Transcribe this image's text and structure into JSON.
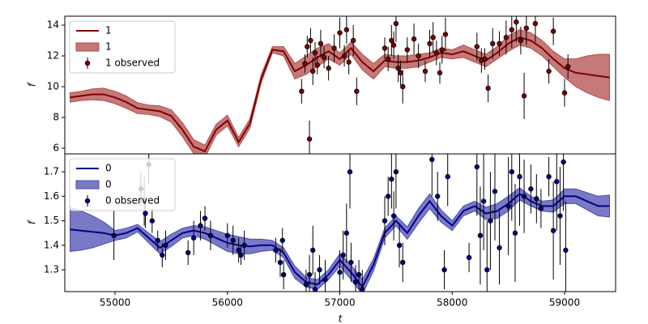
{
  "chart_data": [
    {
      "type": "gp",
      "ylabel": "f",
      "legend": "upper left",
      "xlim": [
        54553,
        59454
      ],
      "ylim": [
        5.63,
        14.58
      ],
      "yticks": [
        6,
        8,
        10,
        12,
        14
      ],
      "x": [
        54600,
        54700,
        54800,
        54900,
        55000,
        55100,
        55200,
        55300,
        55400,
        55500,
        55600,
        55700,
        55800,
        55900,
        56000,
        56100,
        56200,
        56300,
        56400,
        56500,
        56600,
        56700,
        56800,
        56900,
        57000,
        57100,
        57200,
        57300,
        57400,
        57500,
        57600,
        57700,
        57800,
        57900,
        58000,
        58100,
        58200,
        58300,
        58400,
        58500,
        58600,
        58700,
        58800,
        58900,
        59000,
        59100,
        59200,
        59300,
        59400
      ],
      "series": [
        {
          "name": "1",
          "color": "#800000",
          "values": [
            9.3,
            9.4,
            9.5,
            9.5,
            9.3,
            9.0,
            8.6,
            8.5,
            8.4,
            8.1,
            7.2,
            6.1,
            5.8,
            7.2,
            7.8,
            6.4,
            7.6,
            10.5,
            12.4,
            12.3,
            11.0,
            11.4,
            11.9,
            12.3,
            11.8,
            12.5,
            11.6,
            11.0,
            11.7,
            11.6,
            11.6,
            11.7,
            11.9,
            12.2,
            12.1,
            12.3,
            12.0,
            11.7,
            12.2,
            12.8,
            13.2,
            13.0,
            12.5,
            11.8,
            11.2,
            10.9,
            10.8,
            10.7,
            10.6
          ]
        },
        {
          "name": "1",
          "color": "#b24c4c",
          "band": [
            0.3,
            0.3,
            0.35,
            0.4,
            0.4,
            0.4,
            0.35,
            0.3,
            0.35,
            0.4,
            0.45,
            0.45,
            0.4,
            0.35,
            0.35,
            0.3,
            0.3,
            0.25,
            0.2,
            0.3,
            0.5,
            0.6,
            0.6,
            0.5,
            0.4,
            0.4,
            0.5,
            0.5,
            0.4,
            0.4,
            0.4,
            0.4,
            0.3,
            0.3,
            0.3,
            0.4,
            0.4,
            0.4,
            0.4,
            0.5,
            0.5,
            0.5,
            0.5,
            0.5,
            0.6,
            0.9,
            1.2,
            1.4,
            1.5
          ]
        },
        {
          "name": "1 observed",
          "color": "#800000",
          "x": [
            56660,
            56690,
            56710,
            56730,
            56740,
            56760,
            56780,
            56800,
            56830,
            56860,
            56900,
            56950,
            57000,
            57040,
            57060,
            57080,
            57120,
            57150,
            57400,
            57430,
            57460,
            57480,
            57500,
            57520,
            57540,
            57560,
            57600,
            57660,
            57700,
            57760,
            57800,
            57830,
            57860,
            57890,
            57910,
            57940,
            58220,
            58260,
            58290,
            58320,
            58360,
            58420,
            58480,
            58530,
            58570,
            58610,
            58640,
            58660,
            58740,
            58860,
            58900,
            59000,
            59030
          ],
          "values": [
            9.7,
            11.5,
            12.6,
            6.6,
            13.0,
            11.0,
            12.2,
            11.4,
            12.8,
            11.9,
            11.2,
            12.5,
            13.5,
            12.0,
            13.7,
            11.6,
            13.0,
            9.7,
            12.5,
            11.8,
            13.0,
            12.7,
            14.1,
            11.2,
            10.9,
            10.0,
            12.4,
            13.1,
            12.0,
            11.0,
            12.8,
            13.2,
            12.2,
            10.9,
            12.4,
            13.4,
            12.6,
            11.7,
            11.8,
            9.9,
            12.8,
            12.8,
            13.2,
            13.7,
            14.2,
            13.0,
            9.4,
            13.8,
            14.1,
            11.0,
            13.6,
            9.6,
            11.3
          ],
          "errors": [
            0.8,
            0.6,
            0.7,
            1.2,
            0.8,
            0.9,
            0.7,
            0.6,
            0.9,
            0.7,
            0.8,
            0.9,
            1.0,
            0.7,
            0.9,
            0.8,
            1.0,
            0.9,
            0.7,
            0.8,
            1.0,
            0.9,
            1.2,
            0.9,
            0.8,
            1.1,
            0.8,
            1.0,
            0.8,
            0.7,
            0.9,
            1.0,
            0.8,
            0.7,
            0.9,
            1.1,
            0.9,
            0.8,
            0.7,
            0.9,
            1.0,
            0.8,
            1.1,
            1.2,
            1.3,
            0.9,
            1.5,
            1.1,
            1.2,
            0.8,
            0.9,
            0.9,
            0.8
          ]
        }
      ]
    },
    {
      "type": "gp",
      "ylabel": "f",
      "xlabel": "t",
      "legend": "upper left",
      "xlim": [
        54553,
        59454
      ],
      "ylim": [
        1.211,
        1.773
      ],
      "yticks": [
        1.3,
        1.4,
        1.5,
        1.6,
        1.7
      ],
      "xticks": [
        55000,
        56000,
        57000,
        58000,
        59000
      ],
      "x": [
        54600,
        54700,
        54800,
        54900,
        55000,
        55100,
        55200,
        55300,
        55400,
        55500,
        55600,
        55700,
        55800,
        55900,
        56000,
        56100,
        56200,
        56300,
        56400,
        56500,
        56600,
        56700,
        56800,
        56900,
        57000,
        57100,
        57200,
        57300,
        57400,
        57500,
        57600,
        57700,
        57800,
        57900,
        58000,
        58100,
        58200,
        58300,
        58400,
        58500,
        58600,
        58700,
        58800,
        58900,
        59000,
        59100,
        59200,
        59300,
        59400
      ],
      "series": [
        {
          "name": "0",
          "color": "#00008b",
          "values": [
            1.465,
            1.46,
            1.455,
            1.45,
            1.44,
            1.45,
            1.47,
            1.43,
            1.39,
            1.42,
            1.45,
            1.46,
            1.45,
            1.43,
            1.41,
            1.4,
            1.395,
            1.4,
            1.4,
            1.37,
            1.29,
            1.25,
            1.24,
            1.28,
            1.34,
            1.29,
            1.23,
            1.32,
            1.45,
            1.5,
            1.45,
            1.52,
            1.58,
            1.52,
            1.48,
            1.54,
            1.56,
            1.53,
            1.54,
            1.57,
            1.61,
            1.58,
            1.56,
            1.56,
            1.6,
            1.6,
            1.58,
            1.56,
            1.56
          ]
        },
        {
          "name": "0",
          "color": "#4c4cb2",
          "band": [
            0.09,
            0.08,
            0.065,
            0.045,
            0.02,
            0.02,
            0.015,
            0.02,
            0.025,
            0.025,
            0.02,
            0.02,
            0.025,
            0.03,
            0.035,
            0.035,
            0.03,
            0.025,
            0.02,
            0.02,
            0.025,
            0.02,
            0.02,
            0.02,
            0.025,
            0.03,
            0.03,
            0.025,
            0.02,
            0.02,
            0.025,
            0.03,
            0.03,
            0.025,
            0.02,
            0.02,
            0.02,
            0.025,
            0.03,
            0.03,
            0.025,
            0.02,
            0.02,
            0.025,
            0.03,
            0.03,
            0.035,
            0.04,
            0.045
          ]
        },
        {
          "name": "0 observed",
          "color": "#00008b",
          "x": [
            54990,
            55230,
            55260,
            55300,
            55270,
            55330,
            55380,
            55420,
            55450,
            55650,
            55700,
            55760,
            55800,
            55850,
            56000,
            56050,
            56100,
            56120,
            56150,
            56430,
            56470,
            56490,
            56500,
            56700,
            56730,
            56760,
            56780,
            56820,
            56870,
            57000,
            57030,
            57060,
            57090,
            57100,
            57140,
            57170,
            57200,
            57400,
            57430,
            57460,
            57480,
            57500,
            57530,
            57560,
            57820,
            57870,
            57930,
            57960,
            58150,
            58220,
            58250,
            58280,
            58310,
            58340,
            58380,
            58420,
            58500,
            58530,
            58560,
            58600,
            58640,
            58700,
            58750,
            58790,
            58860,
            58900,
            58930,
            58960,
            58990,
            59010
          ],
          "values": [
            1.44,
            1.63,
            1.58,
            1.73,
            1.53,
            1.5,
            1.42,
            1.36,
            1.4,
            1.37,
            1.43,
            1.48,
            1.51,
            1.44,
            1.44,
            1.42,
            1.38,
            1.36,
            1.4,
            1.38,
            1.33,
            1.42,
            1.28,
            1.24,
            1.28,
            1.38,
            1.22,
            1.3,
            1.26,
            1.29,
            1.36,
            1.45,
            1.7,
            1.33,
            1.25,
            1.28,
            1.22,
            1.5,
            1.6,
            1.67,
            1.52,
            1.7,
            1.4,
            1.33,
            1.75,
            1.6,
            1.3,
            1.68,
            1.35,
            1.72,
            1.44,
            1.58,
            1.3,
            1.5,
            1.62,
            1.39,
            1.56,
            1.7,
            1.45,
            1.68,
            1.6,
            1.63,
            1.59,
            1.55,
            1.68,
            1.46,
            1.66,
            1.52,
            1.74,
            1.38
          ],
          "errors": [
            0.1,
            0.07,
            0.1,
            0.08,
            0.06,
            0.05,
            0.04,
            0.05,
            0.06,
            0.05,
            0.07,
            0.06,
            0.05,
            0.06,
            0.05,
            0.06,
            0.05,
            0.04,
            0.06,
            0.05,
            0.06,
            0.05,
            0.06,
            0.06,
            0.08,
            0.1,
            0.07,
            0.06,
            0.08,
            0.09,
            0.1,
            0.12,
            0.15,
            0.08,
            0.07,
            0.06,
            0.08,
            0.1,
            0.08,
            0.12,
            0.1,
            0.15,
            0.09,
            0.08,
            0.15,
            0.1,
            0.08,
            0.12,
            0.06,
            0.2,
            0.2,
            0.2,
            0.2,
            0.2,
            0.2,
            0.15,
            0.2,
            0.2,
            0.2,
            0.2,
            0.15,
            0.1,
            0.1,
            0.08,
            0.08,
            0.2,
            0.2,
            0.2,
            0.2,
            0.2
          ]
        }
      ]
    }
  ]
}
